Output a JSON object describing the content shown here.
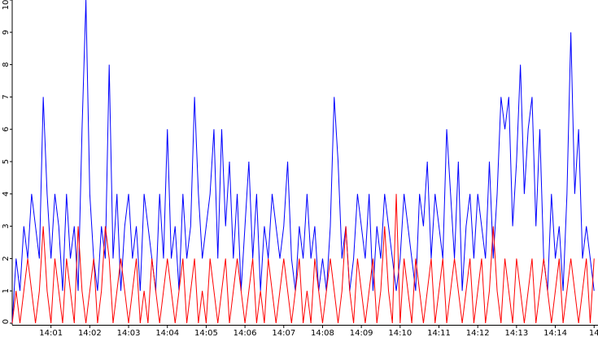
{
  "chart_data": {
    "type": "line",
    "x": [
      840,
      840.1,
      840.2,
      840.3,
      840.4,
      840.5,
      840.6,
      840.7,
      840.8,
      840.9,
      841,
      841.1,
      841.2,
      841.3,
      841.4,
      841.5,
      841.6,
      841.7,
      841.8,
      841.9,
      842,
      842.1,
      842.2,
      842.3,
      842.4,
      842.5,
      842.6,
      842.7,
      842.8,
      842.9,
      843,
      843.1,
      843.2,
      843.3,
      843.4,
      843.5,
      843.6,
      843.7,
      843.8,
      843.9,
      844,
      844.1,
      844.2,
      844.3,
      844.4,
      844.5,
      844.6,
      844.7,
      844.8,
      844.9,
      845,
      845.1,
      845.2,
      845.3,
      845.4,
      845.5,
      845.6,
      845.7,
      845.8,
      845.9,
      846,
      846.1,
      846.2,
      846.3,
      846.4,
      846.5,
      846.6,
      846.7,
      846.8,
      846.9,
      847,
      847.1,
      847.2,
      847.3,
      847.4,
      847.5,
      847.6,
      847.7,
      847.8,
      847.9,
      848,
      848.1,
      848.2,
      848.3,
      848.4,
      848.5,
      848.6,
      848.7,
      848.8,
      848.9,
      849,
      849.1,
      849.2,
      849.3,
      849.4,
      849.5,
      849.6,
      849.7,
      849.8,
      849.9,
      850,
      850.1,
      850.2,
      850.3,
      850.4,
      850.5,
      850.6,
      850.7,
      850.8,
      850.9,
      851,
      851.1,
      851.2,
      851.3,
      851.4,
      851.5,
      851.6,
      851.7,
      851.8,
      851.9,
      852,
      852.1,
      852.2,
      852.3,
      852.4,
      852.5,
      852.6,
      852.7,
      852.8,
      852.9,
      853,
      853.1,
      853.2,
      853.3,
      853.4,
      853.5,
      853.6,
      853.7,
      853.8,
      853.9,
      854,
      854.1,
      854.2,
      854.3,
      854.4,
      854.5,
      854.6,
      854.7,
      854.8,
      854.9,
      855
    ],
    "series": [
      {
        "color": "#0000ff",
        "values": [
          0,
          2,
          1,
          3,
          2,
          4,
          3,
          2,
          7,
          4,
          2,
          4,
          3,
          1,
          4,
          2,
          3,
          1,
          6,
          10,
          4,
          2,
          1,
          3,
          2,
          8,
          2,
          4,
          1,
          3,
          4,
          2,
          3,
          1,
          4,
          3,
          2,
          1,
          4,
          2,
          6,
          2,
          3,
          1,
          4,
          2,
          3,
          7,
          4,
          2,
          3,
          4,
          6,
          2,
          6,
          3,
          5,
          2,
          4,
          1,
          3,
          5,
          2,
          4,
          1,
          3,
          2,
          4,
          3,
          2,
          3,
          5,
          2,
          1,
          3,
          2,
          4,
          2,
          3,
          1,
          2,
          1,
          3,
          7,
          5,
          2,
          3,
          1,
          2,
          4,
          3,
          2,
          4,
          1,
          3,
          2,
          4,
          3,
          2,
          1,
          2,
          4,
          3,
          2,
          1,
          4,
          3,
          5,
          2,
          4,
          3,
          2,
          6,
          4,
          2,
          5,
          1,
          3,
          4,
          2,
          4,
          3,
          2,
          5,
          2,
          4,
          7,
          6,
          7,
          3,
          5,
          8,
          4,
          6,
          7,
          3,
          6,
          2,
          1,
          4,
          2,
          3,
          1,
          4,
          9,
          4,
          6,
          2,
          3,
          2,
          1
        ]
      },
      {
        "color": "#ff0000",
        "values": [
          0,
          1,
          0,
          1,
          2,
          1,
          0,
          1,
          3,
          1,
          0,
          2,
          1,
          0,
          2,
          1,
          0,
          3,
          1,
          0,
          1,
          2,
          0,
          1,
          3,
          2,
          0,
          1,
          2,
          1,
          0,
          1,
          2,
          0,
          1,
          0,
          2,
          1,
          0,
          1,
          2,
          1,
          0,
          1,
          2,
          0,
          1,
          2,
          0,
          1,
          0,
          2,
          1,
          0,
          1,
          2,
          0,
          1,
          2,
          1,
          0,
          1,
          2,
          0,
          1,
          0,
          2,
          1,
          0,
          1,
          2,
          1,
          0,
          1,
          2,
          0,
          1,
          0,
          2,
          1,
          0,
          1,
          2,
          1,
          0,
          1,
          3,
          1,
          0,
          2,
          1,
          0,
          1,
          2,
          0,
          1,
          3,
          1,
          0,
          4,
          0,
          2,
          1,
          0,
          2,
          1,
          0,
          1,
          2,
          0,
          1,
          2,
          0,
          1,
          2,
          1,
          0,
          1,
          2,
          0,
          1,
          2,
          0,
          1,
          3,
          1,
          0,
          2,
          1,
          0,
          2,
          1,
          0,
          1,
          2,
          0,
          1,
          2,
          1,
          0,
          1,
          2,
          0,
          1,
          2,
          1,
          0,
          1,
          2,
          0,
          2
        ]
      }
    ],
    "xlim": [
      840,
      855.1
    ],
    "xticks": [
      {
        "value": 841,
        "label": "14:01"
      },
      {
        "value": 842,
        "label": "14:02"
      },
      {
        "value": 843,
        "label": "14:03"
      },
      {
        "value": 844,
        "label": "14:04"
      },
      {
        "value": 845,
        "label": "14:05"
      },
      {
        "value": 846,
        "label": "14:06"
      },
      {
        "value": 847,
        "label": "14:07"
      },
      {
        "value": 848,
        "label": "14:08"
      },
      {
        "value": 849,
        "label": "14:09"
      },
      {
        "value": 850,
        "label": "14:10"
      },
      {
        "value": 851,
        "label": "14:11"
      },
      {
        "value": 852,
        "label": "14:12"
      },
      {
        "value": 853,
        "label": "14:13"
      },
      {
        "value": 854,
        "label": "14:14"
      },
      {
        "value": 855,
        "label": "14"
      }
    ],
    "ylim": [
      0,
      10
    ],
    "yticks": [
      0,
      1,
      2,
      3,
      4,
      5,
      6,
      7,
      8,
      9,
      10
    ],
    "grid": false
  }
}
